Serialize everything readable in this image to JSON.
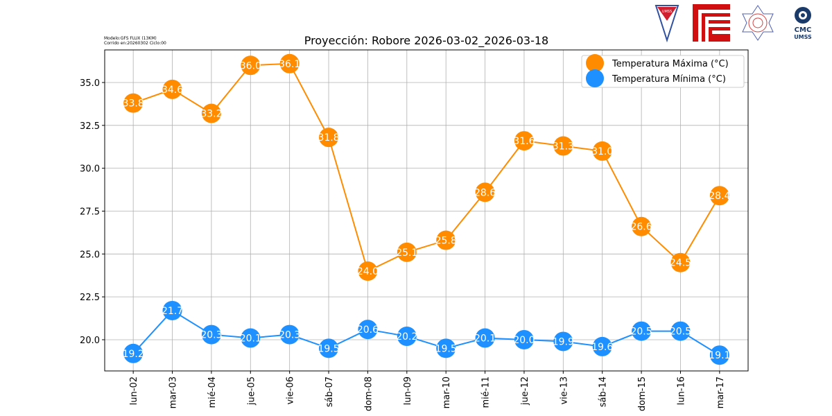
{
  "meta": {
    "line1": "Modelo:GFS FLUX (13KM)",
    "line2": "Corrido en:20260302 Ciclo:00"
  },
  "logos": {
    "umss": "UMSS",
    "cmc_line1": "CMC",
    "cmc_line2": "UMSS"
  },
  "chart_data": {
    "type": "line",
    "title": "Proyección: Robore 2026-03-02_2026-03-18",
    "xlabel": "",
    "ylabel": "",
    "categories": [
      "lun-02",
      "mar-03",
      "mié-04",
      "jue-05",
      "vie-06",
      "sáb-07",
      "dom-08",
      "lun-09",
      "mar-10",
      "mié-11",
      "jue-12",
      "vie-13",
      "sáb-14",
      "dom-15",
      "lun-16",
      "mar-17"
    ],
    "ylim": [
      18.18,
      36.9
    ],
    "yticks": [
      20.0,
      22.5,
      25.0,
      27.5,
      30.0,
      32.5,
      35.0
    ],
    "ytick_labels": [
      "20.0",
      "22.5",
      "25.0",
      "27.5",
      "30.0",
      "32.5",
      "35.0"
    ],
    "grid": true,
    "legend_position": "top-right",
    "series": [
      {
        "name": "Temperatura Máxima  (°C)",
        "color": "#ff8c00",
        "values": [
          33.8,
          34.6,
          33.2,
          36.0,
          36.1,
          31.8,
          24.0,
          25.1,
          25.8,
          28.6,
          31.6,
          31.3,
          31.0,
          26.6,
          24.5,
          28.4
        ]
      },
      {
        "name": "Temperatura Mínima  (°C)",
        "color": "#1e90ff",
        "values": [
          19.2,
          21.7,
          20.3,
          20.1,
          20.3,
          19.5,
          20.6,
          20.2,
          19.5,
          20.1,
          20.0,
          19.9,
          19.6,
          20.5,
          20.5,
          19.1
        ]
      }
    ]
  }
}
